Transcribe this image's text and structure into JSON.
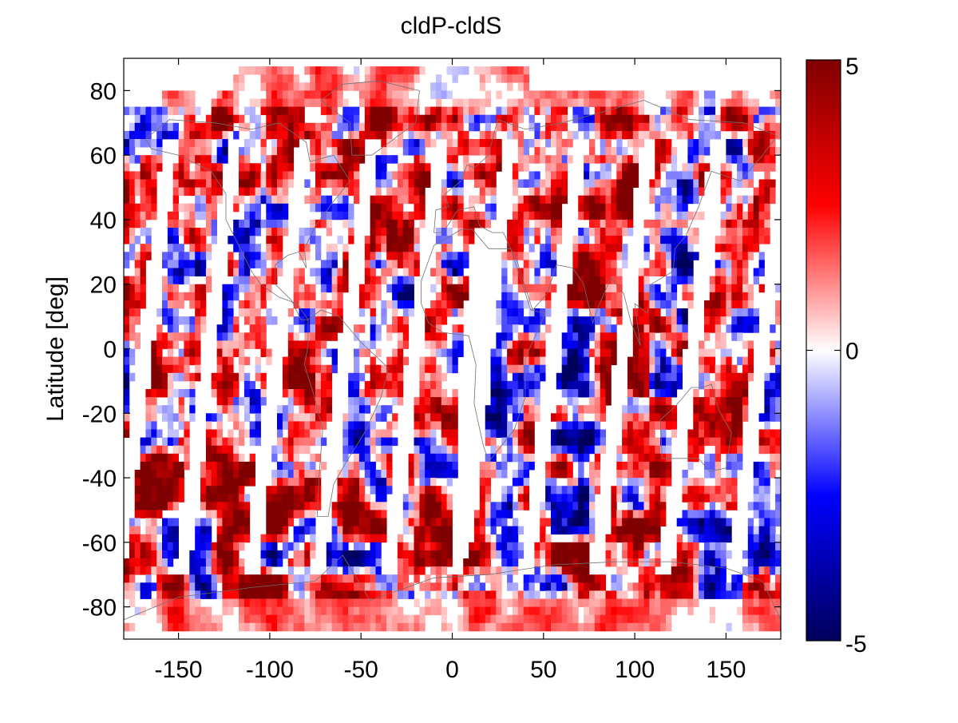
{
  "chart_data": {
    "type": "heatmap",
    "title": "cldP-cldS",
    "xlabel": "",
    "ylabel": "Latitude [deg]",
    "xlim": [
      -180,
      180
    ],
    "ylim": [
      -90,
      90
    ],
    "xticks": [
      -150,
      -100,
      -50,
      0,
      50,
      100,
      150
    ],
    "yticks": [
      80,
      60,
      40,
      20,
      0,
      -20,
      -40,
      -60,
      -80
    ],
    "grid": false,
    "colorbar": {
      "range": [
        -5,
        5
      ],
      "ticks": [
        5,
        0,
        -5
      ],
      "colormap": "blue-white-red",
      "colors": [
        "#00005a",
        "#0000ff",
        "#ffffff",
        "#ff0000",
        "#7f0000"
      ]
    },
    "overlay": "coastlines"
  }
}
